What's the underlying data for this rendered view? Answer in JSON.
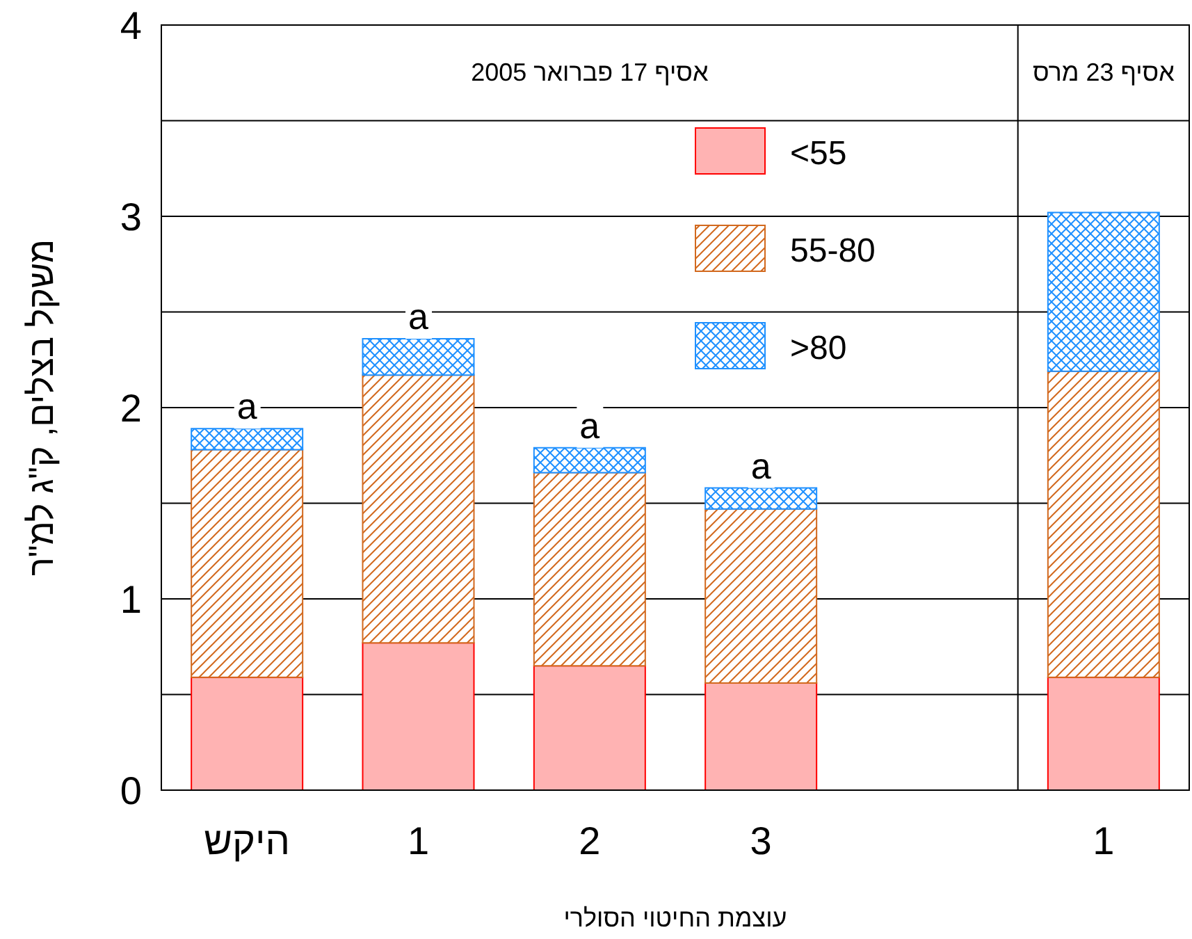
{
  "chart_data": {
    "type": "bar",
    "stacked": true,
    "xlabel": "עוצמת החיטוי הסולרי",
    "ylabel": "משקל בצלים, ק\"ג למ\"ר",
    "categories": [
      "היקש",
      "1",
      "2",
      "3",
      null,
      "1"
    ],
    "series": [
      {
        "name": "<55",
        "color": "#ffb3b3",
        "values": [
          0.59,
          0.77,
          0.65,
          0.56,
          null,
          0.59
        ]
      },
      {
        "name": "55-80",
        "color": "#d2691e",
        "values": [
          1.19,
          1.4,
          1.01,
          0.91,
          null,
          1.6
        ]
      },
      {
        "name": ">80",
        "color": "#1e90ff",
        "values": [
          0.11,
          0.19,
          0.13,
          0.11,
          null,
          0.83
        ]
      }
    ],
    "ylim": [
      0,
      4
    ],
    "yticks": [
      0,
      {
        "value": 0.5,
        "label": null
      },
      1,
      {
        "value": 1.5,
        "label": null
      },
      2,
      {
        "value": 2.5,
        "label": null
      },
      3,
      {
        "value": 3.5,
        "label": null
      },
      4
    ],
    "grid": "y",
    "legend": "top",
    "annotations": [
      "אסיף 17 פברואר 2005",
      "אסיף 23 מרס",
      {
        "text": "a",
        "x": "היקש",
        "y": 1.89
      },
      {
        "text": "a",
        "x": "1",
        "y": 2.36
      },
      {
        "text": "a",
        "x": "2",
        "y": 1.79
      },
      {
        "text": "a",
        "x": "3",
        "y": 1.58
      }
    ]
  }
}
